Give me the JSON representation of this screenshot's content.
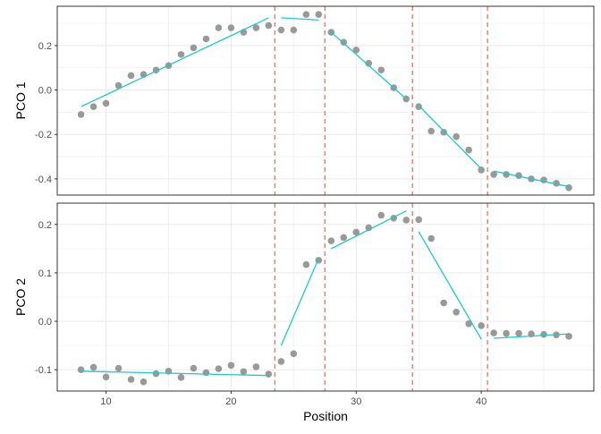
{
  "chart_data": {
    "type": "scatter",
    "xlabel": "Position",
    "x_ticks": [
      10,
      20,
      30,
      40
    ],
    "xlim": [
      6.1,
      49.0
    ],
    "grid": true,
    "colors": {
      "points": "#999999",
      "fit": "#1fc8c8",
      "breakpoint": "#f8765c"
    },
    "breakpoints": [
      23.5,
      27.5,
      34.5,
      40.5
    ],
    "x": [
      8,
      9,
      10,
      11,
      12,
      13,
      14,
      15,
      16,
      17,
      18,
      19,
      20,
      21,
      22,
      23,
      24,
      25,
      26,
      27,
      28,
      29,
      30,
      31,
      32,
      33,
      34,
      35,
      36,
      37,
      38,
      39,
      40,
      41,
      42,
      43,
      44,
      45,
      46,
      47
    ],
    "panels": [
      {
        "ylabel": "PCO 1",
        "ylim": [
          -0.473,
          0.377
        ],
        "y_ticks": [
          "0.2",
          "0.0",
          "-0.2",
          "-0.4"
        ],
        "y_tick_values": [
          0.2,
          0.0,
          -0.2,
          -0.4
        ],
        "y": [
          -0.11,
          -0.075,
          -0.06,
          0.02,
          0.065,
          0.07,
          0.09,
          0.11,
          0.16,
          0.19,
          0.23,
          0.28,
          0.28,
          0.26,
          0.28,
          0.29,
          0.27,
          0.27,
          0.34,
          0.34,
          0.26,
          0.215,
          0.18,
          0.12,
          0.09,
          0.01,
          -0.04,
          -0.075,
          -0.185,
          -0.19,
          -0.21,
          -0.27,
          -0.36,
          -0.38,
          -0.38,
          -0.385,
          -0.4,
          -0.405,
          -0.42,
          -0.44
        ],
        "fit_segments": [
          [
            [
              8,
              -0.075
            ],
            [
              23,
              0.325
            ]
          ],
          [
            [
              24,
              0.325
            ],
            [
              27,
              0.315
            ]
          ],
          [
            [
              28,
              0.26
            ],
            [
              34,
              -0.04
            ]
          ],
          [
            [
              35,
              -0.07
            ],
            [
              40,
              -0.355
            ]
          ],
          [
            [
              41,
              -0.365
            ],
            [
              47,
              -0.435
            ]
          ]
        ]
      },
      {
        "ylabel": "PCO 2",
        "ylim": [
          -0.144,
          0.244
        ],
        "y_ticks": [
          "0.2",
          "0.1",
          "0.0",
          "-0.1"
        ],
        "y_tick_values": [
          0.2,
          0.1,
          0.0,
          -0.1
        ],
        "y": [
          -0.1,
          -0.095,
          -0.115,
          -0.097,
          -0.12,
          -0.125,
          -0.108,
          -0.103,
          -0.116,
          -0.097,
          -0.106,
          -0.098,
          -0.091,
          -0.104,
          -0.094,
          -0.109,
          -0.083,
          -0.067,
          0.117,
          0.126,
          0.166,
          0.173,
          0.184,
          0.193,
          0.219,
          0.213,
          0.209,
          0.21,
          0.171,
          0.038,
          0.019,
          -0.005,
          -0.009,
          -0.024,
          -0.025,
          -0.025,
          -0.026,
          -0.027,
          -0.028,
          -0.031
        ],
        "fit_segments": [
          [
            [
              8,
              -0.103
            ],
            [
              23,
              -0.112
            ]
          ],
          [
            [
              24,
              -0.05
            ],
            [
              27,
              0.13
            ]
          ],
          [
            [
              28,
              0.15
            ],
            [
              34,
              0.228
            ]
          ],
          [
            [
              35,
              0.185
            ],
            [
              40,
              -0.037
            ]
          ],
          [
            [
              41,
              -0.035
            ],
            [
              47,
              -0.026
            ]
          ]
        ]
      }
    ]
  }
}
